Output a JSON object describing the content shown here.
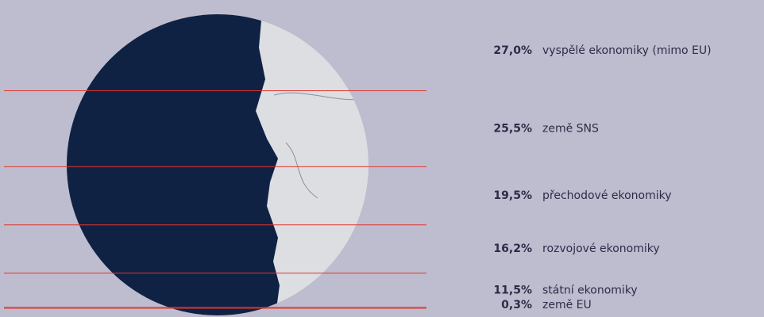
{
  "chart_data": {
    "type": "slices",
    "categories": [
      "vyspělé ekonomiky (mimo EU)",
      "země SNS",
      "přechodové ekonomiky",
      "rozvojové ekonomiky",
      "státní ekonomiky",
      "země EU"
    ],
    "values": [
      27.0,
      25.5,
      19.5,
      16.2,
      11.5,
      0.3
    ],
    "value_labels": [
      "27,0%",
      "25,5%",
      "19,5%",
      "16,2%",
      "11,5%",
      "0,3%"
    ],
    "color": "#e0342c"
  }
}
